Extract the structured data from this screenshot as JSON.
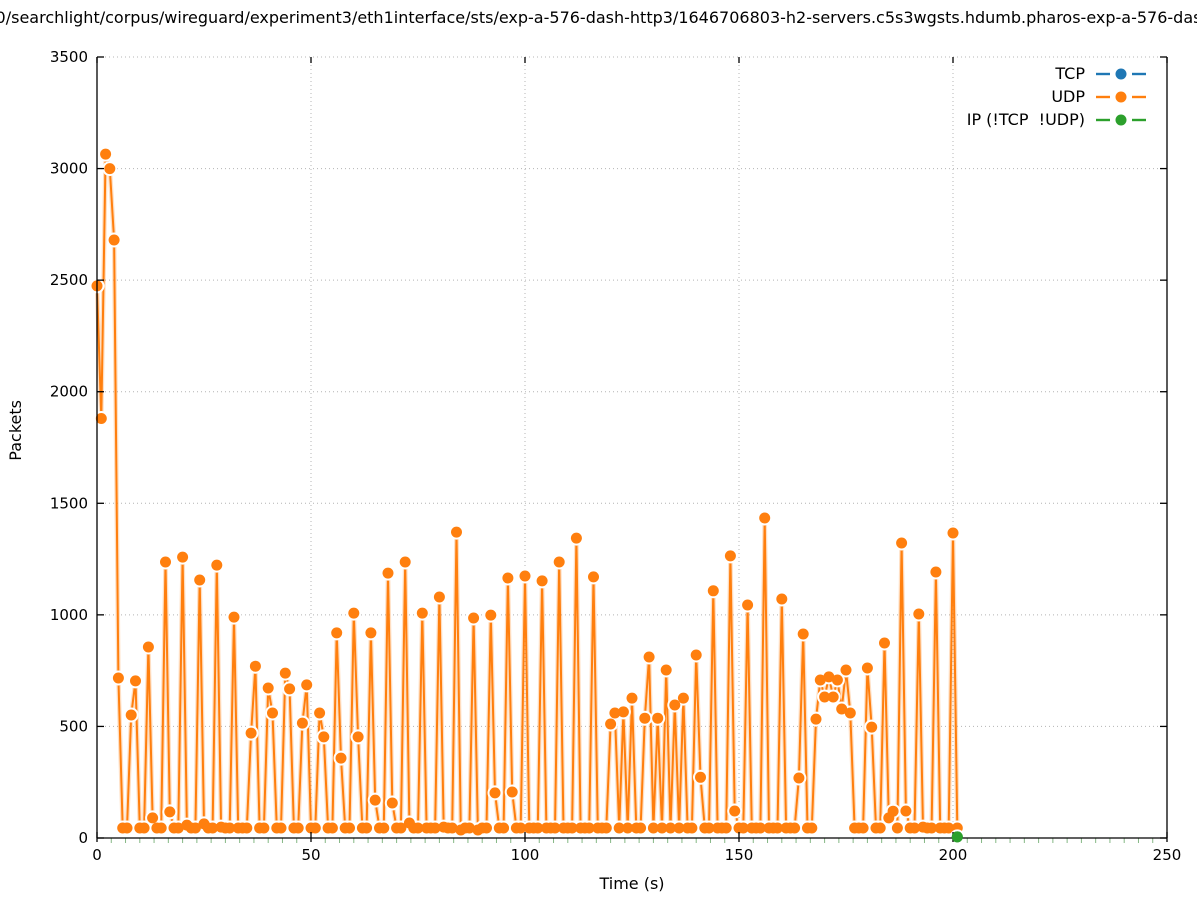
{
  "title": {
    "parts": [
      {
        "t": "0/searchlight/corpus/wireguard/experiment"
      },
      {
        "sub": "3"
      },
      {
        "t": "/eth1"
      },
      {
        "sub": "i"
      },
      {
        "t": "nterface/sts/exp-a-576-dash-http3/1646706803-h2-servers.c5s3wgsts.hdumb.pharos-exp-a-576-das"
      }
    ]
  },
  "axes": {
    "x": {
      "label": "Time (s)",
      "min": 0,
      "max": 250,
      "major_ticks": [
        0,
        50,
        100,
        150,
        200,
        250
      ],
      "minor_intervals_per_major": 15
    },
    "y": {
      "label": "Packets",
      "min": 0,
      "max": 3500,
      "major_ticks": [
        0,
        500,
        1000,
        1500,
        2000,
        2500,
        3000,
        3500
      ]
    }
  },
  "legend": {
    "items": [
      {
        "label": "TCP",
        "color": "#1f77b4"
      },
      {
        "label": "UDP",
        "color": "#ff7f0e"
      },
      {
        "label": "IP (!TCP  !UDP)",
        "color": "#2ca02c"
      }
    ]
  },
  "colors": {
    "grid": "#b4b4b4",
    "minor_tick": "#86b886",
    "axis": "#000000",
    "background": "#ffffff"
  },
  "chart_data": {
    "type": "line",
    "style": "linespoints",
    "title": "0/searchlight/corpus/wireguard/experiment3/eth1interface/sts/exp-a-576-dash-http3/1646706803-h2-servers.c5s3wgsts.hdumb.pharos-exp-a-576-das",
    "xlabel": "Time (s)",
    "ylabel": "Packets",
    "xlim": [
      0,
      250
    ],
    "ylim": [
      0,
      3500
    ],
    "grid": true,
    "legend_position": "top-right",
    "series": [
      {
        "name": "TCP",
        "color": "#1f77b4",
        "points": []
      },
      {
        "name": "UDP",
        "color": "#ff7f0e",
        "points": [
          [
            0,
            2474
          ],
          [
            1,
            1880
          ],
          [
            2,
            3065
          ],
          [
            3,
            3000
          ],
          [
            4,
            2680
          ],
          [
            5,
            717
          ],
          [
            6,
            45
          ],
          [
            7,
            45
          ],
          [
            8,
            551
          ],
          [
            9,
            704
          ],
          [
            10,
            45
          ],
          [
            11,
            45
          ],
          [
            12,
            856
          ],
          [
            13,
            90
          ],
          [
            14,
            45
          ],
          [
            15,
            45
          ],
          [
            16,
            1237
          ],
          [
            17,
            117
          ],
          [
            18,
            45
          ],
          [
            19,
            45
          ],
          [
            20,
            1259
          ],
          [
            21,
            58
          ],
          [
            22,
            45
          ],
          [
            23,
            45
          ],
          [
            24,
            1156
          ],
          [
            25,
            63
          ],
          [
            26,
            45
          ],
          [
            27,
            45
          ],
          [
            28,
            1223
          ],
          [
            29,
            49
          ],
          [
            30,
            45
          ],
          [
            31,
            45
          ],
          [
            32,
            990
          ],
          [
            33,
            45
          ],
          [
            34,
            45
          ],
          [
            35,
            45
          ],
          [
            36,
            470
          ],
          [
            37,
            770
          ],
          [
            38,
            45
          ],
          [
            39,
            45
          ],
          [
            40,
            672
          ],
          [
            41,
            560
          ],
          [
            42,
            45
          ],
          [
            43,
            45
          ],
          [
            44,
            739
          ],
          [
            45,
            668
          ],
          [
            46,
            45
          ],
          [
            47,
            45
          ],
          [
            48,
            515
          ],
          [
            49,
            686
          ],
          [
            50,
            45
          ],
          [
            51,
            45
          ],
          [
            52,
            560
          ],
          [
            53,
            453
          ],
          [
            54,
            45
          ],
          [
            55,
            45
          ],
          [
            56,
            919
          ],
          [
            57,
            358
          ],
          [
            58,
            45
          ],
          [
            59,
            45
          ],
          [
            60,
            1008
          ],
          [
            61,
            453
          ],
          [
            62,
            45
          ],
          [
            63,
            45
          ],
          [
            64,
            919
          ],
          [
            65,
            170
          ],
          [
            66,
            45
          ],
          [
            67,
            45
          ],
          [
            68,
            1187
          ],
          [
            69,
            157
          ],
          [
            70,
            45
          ],
          [
            71,
            45
          ],
          [
            72,
            1237
          ],
          [
            73,
            67
          ],
          [
            74,
            45
          ],
          [
            75,
            45
          ],
          [
            76,
            1008
          ],
          [
            77,
            45
          ],
          [
            78,
            45
          ],
          [
            79,
            45
          ],
          [
            80,
            1080
          ],
          [
            81,
            49
          ],
          [
            82,
            45
          ],
          [
            83,
            45
          ],
          [
            84,
            1371
          ],
          [
            85,
            36
          ],
          [
            86,
            45
          ],
          [
            87,
            45
          ],
          [
            88,
            986
          ],
          [
            89,
            36
          ],
          [
            90,
            45
          ],
          [
            91,
            45
          ],
          [
            92,
            999
          ],
          [
            93,
            202
          ],
          [
            94,
            45
          ],
          [
            95,
            45
          ],
          [
            96,
            1165
          ],
          [
            97,
            206
          ],
          [
            98,
            45
          ],
          [
            99,
            45
          ],
          [
            100,
            1174
          ],
          [
            101,
            45
          ],
          [
            102,
            45
          ],
          [
            103,
            45
          ],
          [
            104,
            1152
          ],
          [
            105,
            45
          ],
          [
            106,
            45
          ],
          [
            107,
            45
          ],
          [
            108,
            1237
          ],
          [
            109,
            45
          ],
          [
            110,
            45
          ],
          [
            111,
            45
          ],
          [
            112,
            1344
          ],
          [
            113,
            45
          ],
          [
            114,
            45
          ],
          [
            115,
            45
          ],
          [
            116,
            1170
          ],
          [
            117,
            45
          ],
          [
            118,
            45
          ],
          [
            119,
            45
          ],
          [
            120,
            511
          ],
          [
            121,
            560
          ],
          [
            122,
            45
          ],
          [
            123,
            565
          ],
          [
            124,
            45
          ],
          [
            125,
            627
          ],
          [
            126,
            45
          ],
          [
            127,
            45
          ],
          [
            128,
            537
          ],
          [
            129,
            811
          ],
          [
            130,
            45
          ],
          [
            131,
            537
          ],
          [
            132,
            45
          ],
          [
            133,
            753
          ],
          [
            134,
            45
          ],
          [
            135,
            596
          ],
          [
            136,
            45
          ],
          [
            137,
            627
          ],
          [
            138,
            45
          ],
          [
            139,
            45
          ],
          [
            140,
            820
          ],
          [
            141,
            272
          ],
          [
            142,
            45
          ],
          [
            143,
            45
          ],
          [
            144,
            1108
          ],
          [
            145,
            45
          ],
          [
            146,
            45
          ],
          [
            147,
            45
          ],
          [
            148,
            1264
          ],
          [
            149,
            121
          ],
          [
            150,
            45
          ],
          [
            151,
            45
          ],
          [
            152,
            1044
          ],
          [
            153,
            45
          ],
          [
            154,
            45
          ],
          [
            155,
            45
          ],
          [
            156,
            1434
          ],
          [
            157,
            45
          ],
          [
            158,
            45
          ],
          [
            159,
            45
          ],
          [
            160,
            1071
          ],
          [
            161,
            45
          ],
          [
            162,
            45
          ],
          [
            163,
            45
          ],
          [
            164,
            269
          ],
          [
            165,
            914
          ],
          [
            166,
            45
          ],
          [
            167,
            45
          ],
          [
            168,
            533
          ],
          [
            169,
            708
          ],
          [
            170,
            632
          ],
          [
            171,
            722
          ],
          [
            172,
            632
          ],
          [
            173,
            708
          ],
          [
            174,
            578
          ],
          [
            175,
            753
          ],
          [
            176,
            560
          ],
          [
            177,
            45
          ],
          [
            178,
            45
          ],
          [
            179,
            45
          ],
          [
            180,
            762
          ],
          [
            181,
            497
          ],
          [
            182,
            45
          ],
          [
            183,
            45
          ],
          [
            184,
            874
          ],
          [
            185,
            90
          ],
          [
            186,
            120
          ],
          [
            187,
            45
          ],
          [
            188,
            1322
          ],
          [
            189,
            121
          ],
          [
            190,
            45
          ],
          [
            191,
            45
          ],
          [
            192,
            1004
          ],
          [
            193,
            49
          ],
          [
            194,
            45
          ],
          [
            195,
            45
          ],
          [
            196,
            1192
          ],
          [
            197,
            45
          ],
          [
            198,
            45
          ],
          [
            199,
            45
          ],
          [
            200,
            1367
          ],
          [
            201,
            45
          ]
        ]
      },
      {
        "name": "IP (!TCP  !UDP)",
        "color": "#2ca02c",
        "points": [
          [
            201,
            5
          ]
        ]
      }
    ]
  }
}
